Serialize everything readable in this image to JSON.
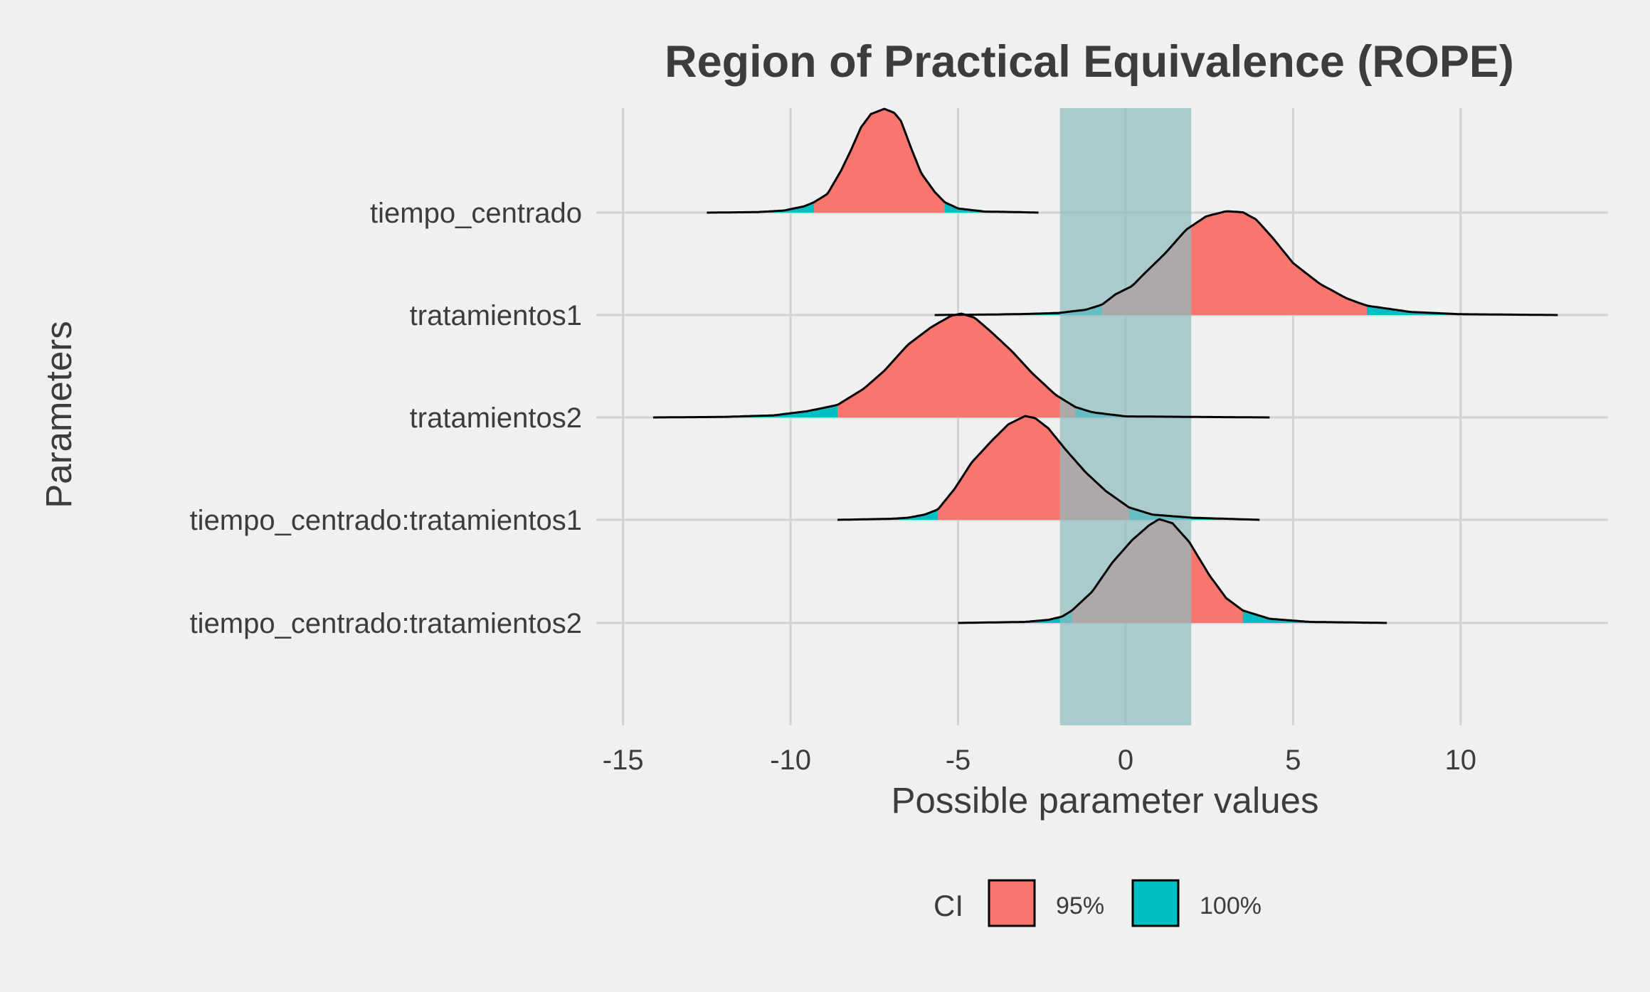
{
  "chart_data": {
    "type": "ridgeline-density",
    "title": "Region of Practical Equivalence (ROPE)",
    "xlabel": "Possible parameter values",
    "ylabel": "Parameters",
    "xlim": [
      -15.8,
      14.4
    ],
    "x_ticks": [
      -15,
      -10,
      -5,
      0,
      5,
      10
    ],
    "x_tick_labels": [
      "-15",
      "-10",
      "-5",
      "0",
      "5",
      "10"
    ],
    "grid": true,
    "rope": {
      "low": -1.96,
      "high": 1.96,
      "color": "#8fbcbf"
    },
    "legend": {
      "title": "CI",
      "position": "bottom",
      "entries": [
        {
          "label": "95%",
          "color": "#f8766d"
        },
        {
          "label": "100%",
          "color": "#00bfc4"
        }
      ]
    },
    "series": [
      {
        "name": "tiempo_centrado",
        "range": [
          -12.5,
          -2.6
        ],
        "ci95": [
          -9.3,
          -5.4
        ],
        "points": [
          [
            -12.5,
            0
          ],
          [
            -11,
            0.005
          ],
          [
            -10.2,
            0.02
          ],
          [
            -9.6,
            0.06
          ],
          [
            -9.3,
            0.1
          ],
          [
            -8.9,
            0.18
          ],
          [
            -8.5,
            0.4
          ],
          [
            -8.2,
            0.6
          ],
          [
            -7.9,
            0.82
          ],
          [
            -7.6,
            0.95
          ],
          [
            -7.2,
            1.0
          ],
          [
            -6.9,
            0.96
          ],
          [
            -6.7,
            0.88
          ],
          [
            -6.4,
            0.62
          ],
          [
            -6.1,
            0.38
          ],
          [
            -5.7,
            0.2
          ],
          [
            -5.4,
            0.1
          ],
          [
            -5.0,
            0.04
          ],
          [
            -4.2,
            0.01
          ],
          [
            -3.2,
            0.005
          ],
          [
            -2.6,
            0
          ]
        ]
      },
      {
        "name": "tratamientos1",
        "range": [
          -5.7,
          12.9
        ],
        "ci95": [
          -0.7,
          7.2
        ],
        "points": [
          [
            -5.7,
            0
          ],
          [
            -4,
            0.005
          ],
          [
            -3,
            0.01
          ],
          [
            -2,
            0.02
          ],
          [
            -1.2,
            0.05
          ],
          [
            -0.7,
            0.1
          ],
          [
            -0.3,
            0.2
          ],
          [
            0.2,
            0.28
          ],
          [
            0.5,
            0.38
          ],
          [
            1.2,
            0.6
          ],
          [
            1.8,
            0.82
          ],
          [
            2.4,
            0.95
          ],
          [
            3.0,
            1.0
          ],
          [
            3.5,
            0.99
          ],
          [
            3.9,
            0.92
          ],
          [
            4.4,
            0.74
          ],
          [
            5.0,
            0.5
          ],
          [
            5.8,
            0.3
          ],
          [
            6.6,
            0.16
          ],
          [
            7.2,
            0.09
          ],
          [
            8.5,
            0.03
          ],
          [
            10,
            0.008
          ],
          [
            12.9,
            0
          ]
        ]
      },
      {
        "name": "tratamientos2",
        "range": [
          -14.1,
          4.3
        ],
        "ci95": [
          -8.6,
          -1.5
        ],
        "points": [
          [
            -14.1,
            0
          ],
          [
            -12,
            0.005
          ],
          [
            -10.5,
            0.02
          ],
          [
            -9.5,
            0.06
          ],
          [
            -8.6,
            0.12
          ],
          [
            -7.8,
            0.28
          ],
          [
            -7.2,
            0.45
          ],
          [
            -6.5,
            0.7
          ],
          [
            -5.8,
            0.87
          ],
          [
            -5.2,
            0.98
          ],
          [
            -4.9,
            1.0
          ],
          [
            -4.5,
            0.96
          ],
          [
            -4.0,
            0.82
          ],
          [
            -3.4,
            0.64
          ],
          [
            -2.8,
            0.43
          ],
          [
            -2.1,
            0.22
          ],
          [
            -1.5,
            0.1
          ],
          [
            -1.0,
            0.05
          ],
          [
            0,
            0.01
          ],
          [
            2,
            0.005
          ],
          [
            4.3,
            0
          ]
        ]
      },
      {
        "name": "tiempo_centrado:tratamientos1",
        "range": [
          -8.6,
          4.0
        ],
        "ci95": [
          -5.6,
          0.1
        ],
        "points": [
          [
            -8.6,
            0
          ],
          [
            -7,
            0.01
          ],
          [
            -6.5,
            0.02
          ],
          [
            -6.0,
            0.05
          ],
          [
            -5.6,
            0.1
          ],
          [
            -5.1,
            0.3
          ],
          [
            -4.6,
            0.55
          ],
          [
            -4.0,
            0.76
          ],
          [
            -3.5,
            0.92
          ],
          [
            -3.0,
            1.0
          ],
          [
            -2.7,
            0.98
          ],
          [
            -2.3,
            0.88
          ],
          [
            -1.8,
            0.68
          ],
          [
            -1.2,
            0.46
          ],
          [
            -0.6,
            0.28
          ],
          [
            0.1,
            0.12
          ],
          [
            0.8,
            0.05
          ],
          [
            2,
            0.02
          ],
          [
            4.0,
            0
          ]
        ]
      },
      {
        "name": "tiempo_centrado:tratamientos2",
        "range": [
          -5.0,
          7.8
        ],
        "ci95": [
          -1.6,
          3.5
        ],
        "points": [
          [
            -5.0,
            0
          ],
          [
            -3,
            0.01
          ],
          [
            -2.3,
            0.03
          ],
          [
            -1.9,
            0.06
          ],
          [
            -1.6,
            0.12
          ],
          [
            -1.0,
            0.3
          ],
          [
            -0.4,
            0.58
          ],
          [
            0.2,
            0.8
          ],
          [
            0.7,
            0.94
          ],
          [
            1.0,
            1.0
          ],
          [
            1.4,
            0.96
          ],
          [
            1.9,
            0.78
          ],
          [
            2.5,
            0.46
          ],
          [
            3.0,
            0.24
          ],
          [
            3.5,
            0.12
          ],
          [
            4.3,
            0.04
          ],
          [
            5.5,
            0.01
          ],
          [
            7.8,
            0
          ]
        ]
      }
    ]
  }
}
